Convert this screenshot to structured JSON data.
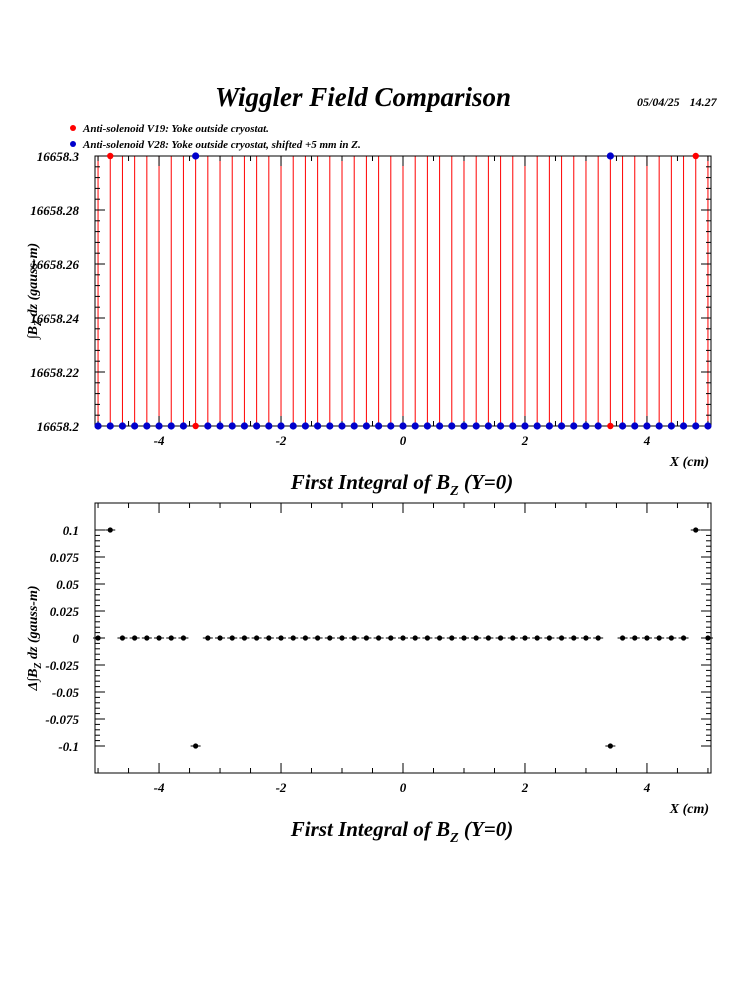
{
  "page_title": "Wiggler Field Comparison",
  "stamp": {
    "date": "05/04/25",
    "time": "14.27"
  },
  "legend": [
    {
      "label": "Anti-solenoid V19: Yoke outside cryostat.",
      "color": "#ff0000"
    },
    {
      "label": "Anti-solenoid V28: Yoke outside cryostat, shifted +5 mm in Z.",
      "color": "#0000cc"
    }
  ],
  "chart_data": [
    {
      "type": "scatter",
      "title": "First Integral of B_Z (Y=0)",
      "title_main": "First Integral of B",
      "title_sub": "Z",
      "title_tail": " (Y=0)",
      "xlabel": "X (cm)",
      "ylabel": "∫B_Z dz (gauss-m)",
      "ylabel_parts": {
        "pre": "∫B",
        "sub": "Z",
        "mid": " dz",
        "post": "  (gauss-m)"
      },
      "xlim": [
        -5.05,
        5.05
      ],
      "ylim": [
        16658.2,
        16658.3
      ],
      "xticks": [
        -4,
        -2,
        0,
        2,
        4
      ],
      "xtick_labels": [
        "-4",
        "-2",
        "0",
        "2",
        "4"
      ],
      "yticks": [
        16658.2,
        16658.22,
        16658.24,
        16658.26,
        16658.28,
        16658.3
      ],
      "ytick_labels": [
        "16658.2",
        "16658.22",
        "16658.24",
        "16658.26",
        "16658.28",
        "16658.3"
      ],
      "line_color": "#ff0000",
      "x": [
        -5.0,
        -4.8,
        -4.6,
        -4.4,
        -4.2,
        -4.0,
        -3.8,
        -3.6,
        -3.4,
        -3.2,
        -3.0,
        -2.8,
        -2.6,
        -2.4,
        -2.2,
        -2.0,
        -1.8,
        -1.6,
        -1.4,
        -1.2,
        -1.0,
        -0.8,
        -0.6,
        -0.4,
        -0.2,
        0.0,
        0.2,
        0.4,
        0.6,
        0.8,
        1.0,
        1.2,
        1.4,
        1.6,
        1.8,
        2.0,
        2.2,
        2.4,
        2.6,
        2.8,
        3.0,
        3.2,
        3.4,
        3.6,
        3.8,
        4.0,
        4.2,
        4.4,
        4.6,
        4.8,
        5.0
      ],
      "series": [
        {
          "name": "Anti-solenoid V19: Yoke outside cryostat.",
          "color": "#ff0000",
          "values": [
            16658.2,
            16658.3,
            16658.2,
            16658.2,
            16658.2,
            16658.2,
            16658.2,
            16658.2,
            16658.2,
            16658.2,
            16658.2,
            16658.2,
            16658.2,
            16658.2,
            16658.2,
            16658.2,
            16658.2,
            16658.2,
            16658.2,
            16658.2,
            16658.2,
            16658.2,
            16658.2,
            16658.2,
            16658.2,
            16658.2,
            16658.2,
            16658.2,
            16658.2,
            16658.2,
            16658.2,
            16658.2,
            16658.2,
            16658.2,
            16658.2,
            16658.2,
            16658.2,
            16658.2,
            16658.2,
            16658.2,
            16658.2,
            16658.2,
            16658.2,
            16658.2,
            16658.2,
            16658.2,
            16658.2,
            16658.2,
            16658.2,
            16658.3,
            16658.2
          ]
        },
        {
          "name": "Anti-solenoid V28: Yoke outside cryostat, shifted +5 mm in Z.",
          "color": "#0000cc",
          "values": [
            16658.2,
            16658.2,
            16658.2,
            16658.2,
            16658.2,
            16658.2,
            16658.2,
            16658.2,
            16658.3,
            16658.2,
            16658.2,
            16658.2,
            16658.2,
            16658.2,
            16658.2,
            16658.2,
            16658.2,
            16658.2,
            16658.2,
            16658.2,
            16658.2,
            16658.2,
            16658.2,
            16658.2,
            16658.2,
            16658.2,
            16658.2,
            16658.2,
            16658.2,
            16658.2,
            16658.2,
            16658.2,
            16658.2,
            16658.2,
            16658.2,
            16658.2,
            16658.2,
            16658.2,
            16658.2,
            16658.2,
            16658.2,
            16658.2,
            16658.3,
            16658.2,
            16658.2,
            16658.2,
            16658.2,
            16658.2,
            16658.2,
            16658.2,
            16658.2
          ]
        }
      ]
    },
    {
      "type": "scatter",
      "title": "First Integral of B_Z (Y=0)",
      "title_main": "First Integral of B",
      "title_sub": "Z",
      "title_tail": " (Y=0)",
      "xlabel": "X (cm)",
      "ylabel": "Δ∫B_Z dz (gauss-m)",
      "ylabel_parts": {
        "pre": "Δ∫B",
        "sub": "Z",
        "mid": " dz",
        "post": "  (gauss-m)"
      },
      "xlim": [
        -5.05,
        5.05
      ],
      "ylim": [
        -0.125,
        0.125
      ],
      "xticks": [
        -4,
        -2,
        0,
        2,
        4
      ],
      "xtick_labels": [
        "-4",
        "-2",
        "0",
        "2",
        "4"
      ],
      "yticks": [
        -0.1,
        -0.075,
        -0.05,
        -0.025,
        0,
        0.025,
        0.05,
        0.075,
        0.1
      ],
      "ytick_labels": [
        "-0.1",
        "-0.075",
        "-0.05",
        "-0.025",
        "0",
        "0.025",
        "0.05",
        "0.075",
        "0.1"
      ],
      "x": [
        -5.0,
        -4.8,
        -4.6,
        -4.4,
        -4.2,
        -4.0,
        -3.8,
        -3.6,
        -3.4,
        -3.2,
        -3.0,
        -2.8,
        -2.6,
        -2.4,
        -2.2,
        -2.0,
        -1.8,
        -1.6,
        -1.4,
        -1.2,
        -1.0,
        -0.8,
        -0.6,
        -0.4,
        -0.2,
        0.0,
        0.2,
        0.4,
        0.6,
        0.8,
        1.0,
        1.2,
        1.4,
        1.6,
        1.8,
        2.0,
        2.2,
        2.4,
        2.6,
        2.8,
        3.0,
        3.2,
        3.4,
        3.6,
        3.8,
        4.0,
        4.2,
        4.4,
        4.6,
        4.8,
        5.0
      ],
      "series": [
        {
          "name": "",
          "color": "#000000",
          "values": [
            0,
            0.1,
            0,
            0,
            0,
            0,
            0,
            0,
            -0.1,
            0,
            0,
            0,
            0,
            0,
            0,
            0,
            0,
            0,
            0,
            0,
            0,
            0,
            0,
            0,
            0,
            0,
            0,
            0,
            0,
            0,
            0,
            0,
            0,
            0,
            0,
            0,
            0,
            0,
            0,
            0,
            0,
            0,
            -0.1,
            0,
            0,
            0,
            0,
            0,
            0,
            0.1,
            0
          ]
        }
      ]
    }
  ]
}
